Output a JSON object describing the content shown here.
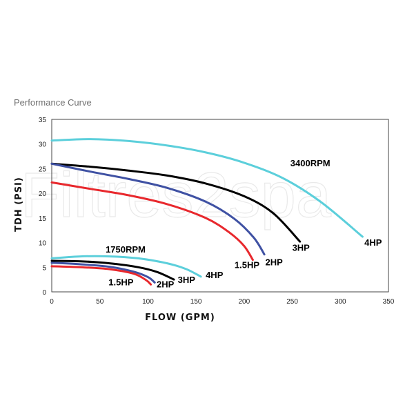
{
  "header": {
    "title": "Performance Curve"
  },
  "watermark": "Filtres2spa",
  "chart_data": {
    "type": "line",
    "title": "",
    "xlabel": "FLOW (GPM)",
    "ylabel": "TDH (PSI)",
    "xlim": [
      0,
      350
    ],
    "ylim": [
      0,
      35
    ],
    "x_ticks": [
      0,
      50,
      100,
      150,
      200,
      250,
      300,
      350
    ],
    "y_ticks": [
      0,
      5,
      10,
      15,
      20,
      25,
      30,
      35
    ],
    "grid": false,
    "group_labels": [
      {
        "text": "3400RPM",
        "x": 248,
        "y": 25.5
      },
      {
        "text": "1750RPM",
        "x": 56,
        "y": 8.0
      }
    ],
    "series": [
      {
        "name": "4HP",
        "group": "3400RPM",
        "color": "#5ccfdb",
        "points": [
          [
            0,
            30.7
          ],
          [
            40,
            31.0
          ],
          [
            80,
            30.6
          ],
          [
            120,
            29.7
          ],
          [
            160,
            28.3
          ],
          [
            200,
            26.2
          ],
          [
            240,
            23.1
          ],
          [
            280,
            18.2
          ],
          [
            323,
            11.2
          ]
        ],
        "label_at": [
          325,
          9.4
        ]
      },
      {
        "name": "3HP",
        "group": "3400RPM",
        "color": "#000000",
        "points": [
          [
            0,
            26.0
          ],
          [
            40,
            25.4
          ],
          [
            80,
            24.6
          ],
          [
            120,
            23.6
          ],
          [
            160,
            22.0
          ],
          [
            200,
            19.4
          ],
          [
            230,
            16.0
          ],
          [
            258,
            10.2
          ]
        ],
        "label_at": [
          250,
          8.3
        ]
      },
      {
        "name": "2HP",
        "group": "3400RPM",
        "color": "#3f51a3",
        "points": [
          [
            0,
            26.0
          ],
          [
            40,
            24.4
          ],
          [
            80,
            22.9
          ],
          [
            120,
            21.1
          ],
          [
            160,
            18.3
          ],
          [
            190,
            14.8
          ],
          [
            210,
            11.0
          ],
          [
            221,
            7.6
          ]
        ],
        "label_at": [
          222,
          5.4
        ]
      },
      {
        "name": "1.5HP",
        "group": "3400RPM",
        "color": "#e8282d",
        "points": [
          [
            0,
            22.2
          ],
          [
            40,
            20.9
          ],
          [
            80,
            19.6
          ],
          [
            120,
            17.8
          ],
          [
            160,
            15.0
          ],
          [
            185,
            12.0
          ],
          [
            200,
            9.3
          ],
          [
            209,
            6.5
          ]
        ],
        "label_at": [
          190,
          4.8
        ]
      },
      {
        "name": "4HP",
        "group": "1750RPM",
        "color": "#5ccfdb",
        "points": [
          [
            0,
            6.8
          ],
          [
            30,
            7.2
          ],
          [
            60,
            7.2
          ],
          [
            90,
            6.8
          ],
          [
            120,
            5.8
          ],
          [
            140,
            4.6
          ],
          [
            155,
            3.1
          ]
        ],
        "label_at": [
          160,
          2.8
        ]
      },
      {
        "name": "3HP",
        "group": "1750RPM",
        "color": "#000000",
        "points": [
          [
            0,
            6.3
          ],
          [
            30,
            6.2
          ],
          [
            60,
            5.8
          ],
          [
            90,
            5.0
          ],
          [
            110,
            4.0
          ],
          [
            127,
            2.5
          ]
        ],
        "label_at": [
          131,
          1.8
        ]
      },
      {
        "name": "2HP",
        "group": "1750RPM",
        "color": "#3f51a3",
        "points": [
          [
            0,
            5.9
          ],
          [
            30,
            5.6
          ],
          [
            60,
            5.1
          ],
          [
            85,
            4.1
          ],
          [
            100,
            3.0
          ],
          [
            107,
            1.9
          ]
        ],
        "label_at": [
          109,
          0.9
        ]
      },
      {
        "name": "1.5HP",
        "group": "1750RPM",
        "color": "#e8282d",
        "points": [
          [
            0,
            5.2
          ],
          [
            30,
            5.0
          ],
          [
            60,
            4.6
          ],
          [
            85,
            3.7
          ],
          [
            98,
            2.4
          ],
          [
            103,
            1.5
          ]
        ],
        "label_at": [
          59,
          1.3
        ]
      }
    ]
  }
}
